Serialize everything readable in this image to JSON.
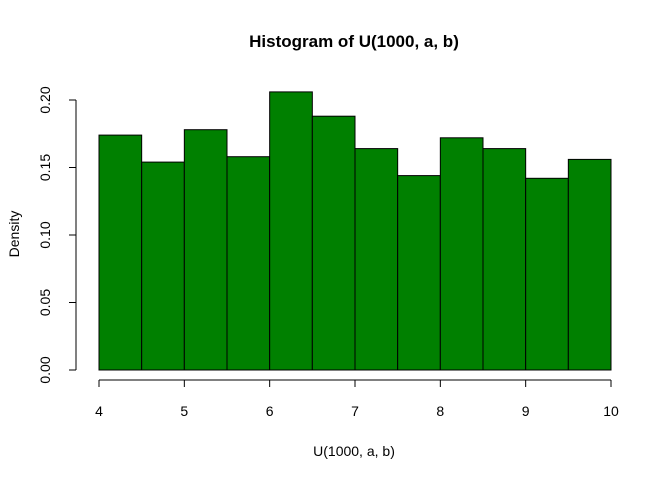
{
  "chart_data": {
    "type": "bar",
    "title": "Histogram of U(1000, a, b)",
    "xlabel": "U(1000, a, b)",
    "ylabel": "Density",
    "bin_edges": [
      4,
      4.5,
      5,
      5.5,
      6,
      6.5,
      7,
      7.5,
      8,
      8.5,
      9,
      9.5,
      10
    ],
    "values": [
      0.174,
      0.154,
      0.178,
      0.158,
      0.206,
      0.188,
      0.164,
      0.144,
      0.172,
      0.164,
      0.142,
      0.156
    ],
    "xlim": [
      4,
      10
    ],
    "ylim": [
      0,
      0.2
    ],
    "xticks": [
      4,
      5,
      6,
      7,
      8,
      9,
      10
    ],
    "xtick_labels": [
      "4",
      "5",
      "6",
      "7",
      "8",
      "9",
      "10"
    ],
    "yticks": [
      0,
      0.05,
      0.1,
      0.15,
      0.2
    ],
    "ytick_labels": [
      "0.00",
      "0.05",
      "0.10",
      "0.15",
      "0.20"
    ],
    "bar_color": "#008000",
    "grid": false
  }
}
